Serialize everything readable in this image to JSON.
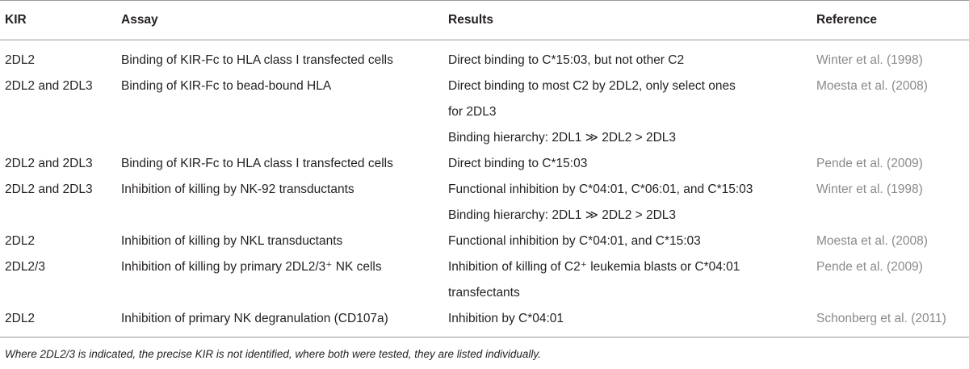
{
  "table": {
    "headers": [
      "KIR",
      "Assay",
      "Results",
      "Reference"
    ],
    "rows": [
      {
        "kir": "2DL2",
        "assay": "Binding of KIR-Fc to HLA class I transfected cells",
        "results": [
          "Direct binding to C*15:03, but not other C2"
        ],
        "reference": "Winter et al. (1998)"
      },
      {
        "kir": "2DL2 and 2DL3",
        "assay": "Binding of KIR-Fc to bead-bound HLA",
        "results": [
          "Direct binding to most C2 by 2DL2, only select ones",
          "for 2DL3",
          "Binding hierarchy: 2DL1 ≫ 2DL2 > 2DL3"
        ],
        "reference": "Moesta et al. (2008)"
      },
      {
        "kir": "2DL2 and 2DL3",
        "assay": "Binding of KIR-Fc to HLA class I transfected cells",
        "results": [
          "Direct binding to C*15:03"
        ],
        "reference": "Pende et al. (2009)"
      },
      {
        "kir": "2DL2 and 2DL3",
        "assay": "Inhibition of killing by NK-92 transductants",
        "results": [
          "Functional inhibition by C*04:01, C*06:01, and C*15:03",
          "Binding hierarchy: 2DL1 ≫ 2DL2 > 2DL3"
        ],
        "reference": "Winter et al. (1998)"
      },
      {
        "kir": "2DL2",
        "assay": "Inhibition of killing by NKL transductants",
        "results": [
          "Functional inhibition by C*04:01, and C*15:03"
        ],
        "reference": "Moesta et al. (2008)"
      },
      {
        "kir": "2DL2/3",
        "assay": "Inhibition of killing by primary 2DL2/3⁺ NK cells",
        "results": [
          "Inhibition of killing of C2⁺ leukemia blasts or C*04:01",
          "transfectants"
        ],
        "reference": "Pende et al. (2009)"
      },
      {
        "kir": "2DL2",
        "assay": "Inhibition of primary NK degranulation (CD107a)",
        "results": [
          "Inhibition by C*04:01"
        ],
        "reference": "Schonberg et al. (2011)"
      }
    ]
  },
  "footnote": "Where 2DL2/3 is indicated, the precise KIR is not identified, where both were tested, they are listed individually."
}
